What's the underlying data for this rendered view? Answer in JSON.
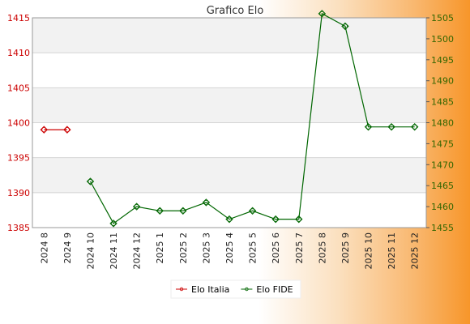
{
  "chart_data": {
    "type": "line",
    "title": "Grafico Elo",
    "categories": [
      "2024 8",
      "2024 9",
      "2024 10",
      "2024 11",
      "2024 12",
      "2025 1",
      "2025 2",
      "2025 3",
      "2025 4",
      "2025 5",
      "2025 6",
      "2025 7",
      "2025 8",
      "2025 9",
      "2025 10",
      "2025 11",
      "2025 12"
    ],
    "y_left": {
      "min": 1385,
      "max": 1415,
      "ticks": [
        "1385",
        "1390",
        "1395",
        "1400",
        "1405",
        "1410",
        "1415"
      ],
      "color": "#cc0000"
    },
    "y_right": {
      "min": 1455,
      "max": 1505,
      "ticks": [
        "1455",
        "1460",
        "1465",
        "1470",
        "1475",
        "1480",
        "1485",
        "1490",
        "1495",
        "1500",
        "1505"
      ],
      "color": "#336600"
    },
    "series": [
      {
        "name": "Elo Italia",
        "axis": "left",
        "color": "#cc0000",
        "values": [
          1399,
          1399,
          null,
          null,
          null,
          null,
          null,
          null,
          null,
          null,
          null,
          null,
          null,
          null,
          null,
          null,
          null
        ]
      },
      {
        "name": "Elo FIDE",
        "axis": "right",
        "color": "#006600",
        "values": [
          null,
          null,
          1466,
          1456,
          1460,
          1459,
          1459,
          1461,
          1457,
          1459,
          1457,
          1457,
          1506,
          1503,
          1479,
          1479,
          1479
        ]
      }
    ],
    "grid": "horizontal bands",
    "legend_position": "bottom"
  }
}
